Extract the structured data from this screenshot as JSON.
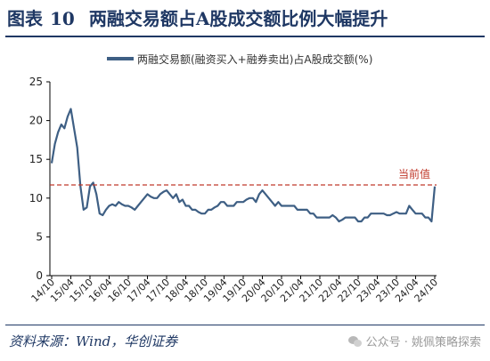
{
  "figure": {
    "label": "图表",
    "number": "10",
    "title": "两融交易额占A股成交额比例大幅提升"
  },
  "source": "资料来源：Wind，华创证券",
  "watermark": "公众号 · 姚佩策略探索",
  "chart_data": {
    "type": "line",
    "legend": "两融交易额(融资买入+融券卖出)占A股成交额(%)",
    "legend_position": "top-center",
    "ylim": [
      0,
      25
    ],
    "yticks": [
      0,
      5,
      10,
      15,
      20,
      25
    ],
    "xticks": [
      "14/10",
      "15/04",
      "15/10",
      "16/04",
      "16/10",
      "17/04",
      "17/10",
      "18/04",
      "18/10",
      "19/04",
      "19/10",
      "20/04",
      "20/10",
      "21/04",
      "21/10",
      "22/04",
      "22/10",
      "23/04",
      "23/10",
      "24/04",
      "24/10"
    ],
    "grid": false,
    "series": [
      {
        "name": "两融交易额(融资买入+融券卖出)占A股成交额(%)",
        "color": "#3e5f84",
        "x": [
          "2014-10",
          "2014-11",
          "2014-12",
          "2015-01",
          "2015-02",
          "2015-03",
          "2015-04",
          "2015-05",
          "2015-06",
          "2015-07",
          "2015-08",
          "2015-09",
          "2015-10",
          "2015-11",
          "2015-12",
          "2016-01",
          "2016-02",
          "2016-03",
          "2016-04",
          "2016-05",
          "2016-06",
          "2016-07",
          "2016-08",
          "2016-09",
          "2016-10",
          "2016-11",
          "2016-12",
          "2017-01",
          "2017-02",
          "2017-03",
          "2017-04",
          "2017-05",
          "2017-06",
          "2017-07",
          "2017-08",
          "2017-09",
          "2017-10",
          "2017-11",
          "2017-12",
          "2018-01",
          "2018-02",
          "2018-03",
          "2018-04",
          "2018-05",
          "2018-06",
          "2018-07",
          "2018-08",
          "2018-09",
          "2018-10",
          "2018-11",
          "2018-12",
          "2019-01",
          "2019-02",
          "2019-03",
          "2019-04",
          "2019-05",
          "2019-06",
          "2019-07",
          "2019-08",
          "2019-09",
          "2019-10",
          "2019-11",
          "2019-12",
          "2020-01",
          "2020-02",
          "2020-03",
          "2020-04",
          "2020-05",
          "2020-06",
          "2020-07",
          "2020-08",
          "2020-09",
          "2020-10",
          "2020-11",
          "2020-12",
          "2021-01",
          "2021-02",
          "2021-03",
          "2021-04",
          "2021-05",
          "2021-06",
          "2021-07",
          "2021-08",
          "2021-09",
          "2021-10",
          "2021-11",
          "2021-12",
          "2022-01",
          "2022-02",
          "2022-03",
          "2022-04",
          "2022-05",
          "2022-06",
          "2022-07",
          "2022-08",
          "2022-09",
          "2022-10",
          "2022-11",
          "2022-12",
          "2023-01",
          "2023-02",
          "2023-03",
          "2023-04",
          "2023-05",
          "2023-06",
          "2023-07",
          "2023-08",
          "2023-09",
          "2023-10",
          "2023-11",
          "2023-12",
          "2024-01",
          "2024-02",
          "2024-03",
          "2024-04",
          "2024-05",
          "2024-06",
          "2024-07",
          "2024-08",
          "2024-09",
          "2024-10"
        ],
        "values": [
          14.5,
          17.0,
          18.5,
          19.5,
          19.0,
          20.5,
          21.5,
          19.0,
          16.5,
          11.5,
          8.5,
          8.8,
          11.5,
          12.0,
          10.5,
          8.0,
          7.8,
          8.5,
          9.0,
          9.2,
          9.0,
          9.5,
          9.2,
          9.0,
          9.0,
          8.8,
          8.5,
          9.0,
          9.5,
          10.0,
          10.5,
          10.2,
          10.0,
          10.0,
          10.5,
          10.8,
          11.0,
          10.5,
          10.0,
          10.5,
          9.5,
          9.8,
          9.0,
          9.0,
          8.5,
          8.5,
          8.2,
          8.0,
          8.0,
          8.5,
          8.5,
          8.8,
          9.0,
          9.5,
          9.5,
          9.0,
          9.0,
          9.0,
          9.5,
          9.5,
          9.5,
          9.8,
          10.0,
          10.0,
          9.5,
          10.5,
          11.0,
          10.5,
          10.0,
          9.5,
          9.0,
          9.5,
          9.0,
          9.0,
          9.0,
          9.0,
          9.0,
          8.5,
          8.5,
          8.5,
          8.5,
          8.0,
          8.0,
          7.5,
          7.5,
          7.5,
          7.5,
          7.5,
          7.8,
          7.5,
          7.0,
          7.2,
          7.5,
          7.5,
          7.5,
          7.5,
          7.0,
          7.0,
          7.5,
          7.5,
          8.0,
          8.0,
          8.0,
          8.0,
          8.0,
          7.8,
          7.8,
          8.0,
          8.2,
          8.0,
          8.0,
          8.0,
          9.0,
          8.5,
          8.0,
          8.0,
          8.0,
          7.5,
          7.5,
          7.0,
          11.5
        ]
      }
    ],
    "reference_line": {
      "label": "当前值",
      "value": 11.7,
      "color": "#c0392b"
    }
  }
}
